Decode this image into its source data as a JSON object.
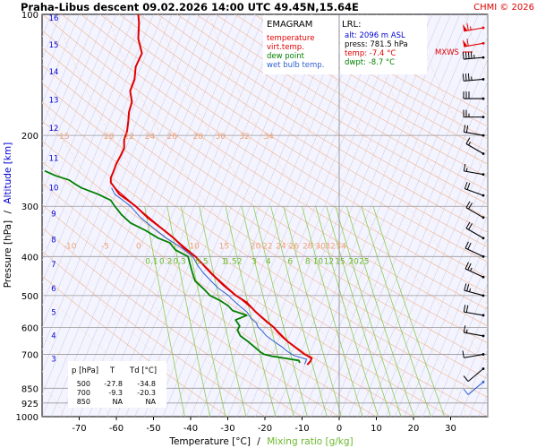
{
  "header": {
    "title": "Praha-Libus   descent   09.02.2026 14:00 UTC  49.45N,15.64E",
    "copyright": "CHMI © 2026"
  },
  "legend": {
    "title": "EMAGRAM",
    "items": [
      {
        "label": "temperature",
        "color": "#e00000"
      },
      {
        "label": "virt.temp.",
        "color": "#e00000"
      },
      {
        "label": "dew point",
        "color": "#008000"
      },
      {
        "label": "wet bulb temp.",
        "color": "#3060d0"
      }
    ]
  },
  "lrl": {
    "heading": "LRL:",
    "lines": [
      {
        "text": "alt: 2096 m ASL",
        "color": "#0000d0"
      },
      {
        "text": "press: 781.5 hPa",
        "color": "#000000"
      },
      {
        "text": "temp: -7.4 °C",
        "color": "#e00000"
      },
      {
        "text": "dwpt: -8.7 °C",
        "color": "#008000"
      }
    ]
  },
  "mxws_label": "MXWS",
  "table": {
    "headers": [
      "p [hPa]",
      "T",
      "Td [°C]"
    ],
    "rows": [
      [
        "500",
        "-27.8",
        "-34.8"
      ],
      [
        "700",
        "-9.3",
        "-20.3"
      ],
      [
        "850",
        "NA",
        "NA"
      ]
    ]
  },
  "axes": {
    "ylabel_pressure": "Pressure [hPa]",
    "ylabel_sep": "/",
    "ylabel_altitude": "Altitude [km]",
    "xlabel_temp": "Temperature [°C]",
    "xlabel_sep": "/",
    "xlabel_mix": "Mixing ratio [g/kg]"
  },
  "chart_data": {
    "type": "line",
    "xlim": [
      -80,
      40
    ],
    "ylim": [
      1000,
      100
    ],
    "yscale": "log",
    "pressure_ticks": [
      100,
      200,
      300,
      400,
      500,
      600,
      700,
      850,
      925,
      1000
    ],
    "temperature_ticks": [
      -70,
      -60,
      -50,
      -40,
      -30,
      -20,
      -10,
      0,
      10,
      20,
      30
    ],
    "altitude_ticks_km": [
      {
        "label": "3",
        "p": 718
      },
      {
        "label": "4",
        "p": 628
      },
      {
        "label": "5",
        "p": 550
      },
      {
        "label": "6",
        "p": 480
      },
      {
        "label": "7",
        "p": 418
      },
      {
        "label": "8",
        "p": 363
      },
      {
        "label": "9",
        "p": 313
      },
      {
        "label": "10",
        "p": 270
      },
      {
        "label": "11",
        "p": 228
      },
      {
        "label": "12",
        "p": 192
      },
      {
        "label": "13",
        "p": 163
      },
      {
        "label": "14",
        "p": 139
      },
      {
        "label": "15",
        "p": 119
      },
      {
        "label": "16",
        "p": 102
      }
    ],
    "mixing_ratio_labels": {
      "p": 411,
      "values": [
        {
          "label": "0.1",
          "T": -50.5
        },
        {
          "label": "0.2",
          "T": -46.7
        },
        {
          "label": "0.3",
          "T": -43
        },
        {
          "label": "0.5",
          "T": -37
        },
        {
          "label": "1",
          "T": -31
        },
        {
          "label": "1.5",
          "T": -29.3
        },
        {
          "label": "2",
          "T": -26.8
        },
        {
          "label": "3",
          "T": -22.9
        },
        {
          "label": "4",
          "T": -19.1
        },
        {
          "label": "6",
          "T": -13.2
        },
        {
          "label": "8",
          "T": -8.5
        },
        {
          "label": "10",
          "T": -5.7
        },
        {
          "label": "12",
          "T": -2.8
        },
        {
          "label": "15",
          "T": 0.2
        },
        {
          "label": "20",
          "T": 3.9
        },
        {
          "label": "25",
          "T": 6.7
        }
      ]
    },
    "adiabat_labels": [
      {
        "p": 201,
        "values": [
          {
            "label": "15",
            "T": -74
          },
          {
            "label": "20",
            "T": -62
          },
          {
            "label": "22",
            "T": -56.5
          },
          {
            "label": "24",
            "T": -51
          },
          {
            "label": "26",
            "T": -45
          },
          {
            "label": "28",
            "T": -38
          },
          {
            "label": "30",
            "T": -32
          },
          {
            "label": "32",
            "T": -25.5
          },
          {
            "label": "34",
            "T": -19
          }
        ]
      },
      {
        "p": 376,
        "values": [
          {
            "label": "-10",
            "T": -72.5
          },
          {
            "label": "-5",
            "T": -63
          },
          {
            "label": "0",
            "T": -54
          },
          {
            "label": "10",
            "T": -39
          },
          {
            "label": "15",
            "T": -31
          },
          {
            "label": "20",
            "T": -22.5
          },
          {
            "label": "22",
            "T": -19.3
          },
          {
            "label": "24",
            "T": -15.7
          },
          {
            "label": "26",
            "T": -12.2
          },
          {
            "label": "28",
            "T": -8.5
          },
          {
            "label": "30",
            "T": -5
          },
          {
            "label": "32",
            "T": -2.4
          },
          {
            "label": "34",
            "T": 0.5
          }
        ]
      }
    ],
    "series": [
      {
        "name": "temperature",
        "color": "#e00000",
        "points": [
          [
            743,
            -8.6
          ],
          [
            730,
            -7.8
          ],
          [
            715,
            -7.4
          ],
          [
            700,
            -9.3
          ],
          [
            680,
            -11.1
          ],
          [
            650,
            -13.9
          ],
          [
            620,
            -16.3
          ],
          [
            600,
            -17.6
          ],
          [
            580,
            -19.6
          ],
          [
            550,
            -22.4
          ],
          [
            520,
            -24.9
          ],
          [
            500,
            -27.8
          ],
          [
            470,
            -31.3
          ],
          [
            440,
            -34.5
          ],
          [
            400,
            -38.7
          ],
          [
            380,
            -41.9
          ],
          [
            360,
            -44.5
          ],
          [
            340,
            -47.9
          ],
          [
            320,
            -51.6
          ],
          [
            300,
            -54.8
          ],
          [
            290,
            -56.9
          ],
          [
            280,
            -59.2
          ],
          [
            270,
            -60.4
          ],
          [
            262,
            -61.5
          ],
          [
            255,
            -61.5
          ],
          [
            245,
            -60.7
          ],
          [
            235,
            -60
          ],
          [
            225,
            -58.9
          ],
          [
            215,
            -57.9
          ],
          [
            205,
            -57.9
          ],
          [
            195,
            -57.1
          ],
          [
            185,
            -56.8
          ],
          [
            175,
            -56.6
          ],
          [
            165,
            -55.8
          ],
          [
            155,
            -56.3
          ],
          [
            145,
            -55.1
          ],
          [
            135,
            -54.8
          ],
          [
            125,
            -53.1
          ],
          [
            115,
            -54.1
          ],
          [
            105,
            -53.9
          ],
          [
            100,
            -54.1
          ]
        ]
      },
      {
        "name": "dew point",
        "color": "#008000",
        "points": [
          [
            735,
            -10.6
          ],
          [
            725,
            -10.9
          ],
          [
            715,
            -14.9
          ],
          [
            708,
            -17.9
          ],
          [
            700,
            -20.3
          ],
          [
            690,
            -21.3
          ],
          [
            670,
            -22.9
          ],
          [
            650,
            -24.6
          ],
          [
            630,
            -26.6
          ],
          [
            610,
            -27.4
          ],
          [
            595,
            -26.8
          ],
          [
            575,
            -27.9
          ],
          [
            560,
            -24.9
          ],
          [
            545,
            -28.7
          ],
          [
            530,
            -29.9
          ],
          [
            515,
            -32
          ],
          [
            500,
            -34.8
          ],
          [
            480,
            -36.6
          ],
          [
            460,
            -38.8
          ],
          [
            440,
            -39.5
          ],
          [
            420,
            -40.1
          ],
          [
            400,
            -40.7
          ],
          [
            385,
            -44.1
          ],
          [
            370,
            -45.6
          ],
          [
            360,
            -48.7
          ],
          [
            345,
            -52
          ],
          [
            330,
            -56.2
          ],
          [
            315,
            -58.6
          ],
          [
            300,
            -60.4
          ],
          [
            290,
            -61.5
          ],
          [
            280,
            -64.9
          ],
          [
            270,
            -69.4
          ],
          [
            265,
            -70.9
          ],
          [
            258,
            -72.8
          ],
          [
            252,
            -76.3
          ],
          [
            245,
            -79.3
          ]
        ]
      },
      {
        "name": "wet bulb temp.",
        "color": "#3060d0",
        "points": [
          [
            740,
            -9.3
          ],
          [
            720,
            -8.8
          ],
          [
            705,
            -12.2
          ],
          [
            690,
            -13.8
          ],
          [
            670,
            -15.5
          ],
          [
            650,
            -17.6
          ],
          [
            630,
            -19.6
          ],
          [
            610,
            -20.9
          ],
          [
            600,
            -21.8
          ],
          [
            585,
            -22.3
          ],
          [
            570,
            -23.7
          ],
          [
            550,
            -24.8
          ],
          [
            530,
            -26.9
          ],
          [
            510,
            -28.9
          ],
          [
            500,
            -29.8
          ],
          [
            480,
            -32.5
          ],
          [
            460,
            -34.5
          ],
          [
            440,
            -36.5
          ],
          [
            420,
            -38.2
          ],
          [
            400,
            -39.4
          ],
          [
            380,
            -42.5
          ],
          [
            360,
            -46.5
          ],
          [
            340,
            -50
          ],
          [
            320,
            -53.5
          ],
          [
            300,
            -56.2
          ],
          [
            290,
            -58.2
          ],
          [
            280,
            -60.4
          ],
          [
            270,
            -61.3
          ]
        ]
      },
      {
        "name": "virt.temp.",
        "color": "#e00000",
        "points": [
          [
            740,
            -8.5
          ],
          [
            720,
            -7.4
          ],
          [
            700,
            -9.2
          ],
          [
            650,
            -13.8
          ],
          [
            600,
            -17.5
          ],
          [
            550,
            -22.3
          ],
          [
            500,
            -27.7
          ],
          [
            450,
            -33.2
          ],
          [
            400,
            -38.6
          ],
          [
            350,
            -46.1
          ],
          [
            300,
            -54.8
          ],
          [
            270,
            -60.4
          ]
        ]
      }
    ],
    "wind_profile": [
      {
        "p": 108,
        "dir": 260,
        "speed": 65,
        "color": "#e00000"
      },
      {
        "p": 118,
        "dir": 260,
        "speed": 60,
        "color": "#e00000"
      },
      {
        "p": 128,
        "dir": 265,
        "speed": 45,
        "color": "#000000"
      },
      {
        "p": 145,
        "dir": 265,
        "speed": 35,
        "color": "#000000"
      },
      {
        "p": 162,
        "dir": 270,
        "speed": 30,
        "color": "#000000"
      },
      {
        "p": 180,
        "dir": 270,
        "speed": 25,
        "color": "#000000"
      },
      {
        "p": 200,
        "dir": 280,
        "speed": 20,
        "color": "#000000"
      },
      {
        "p": 222,
        "dir": 300,
        "speed": 15,
        "color": "#000000"
      },
      {
        "p": 250,
        "dir": 280,
        "speed": 15,
        "color": "#000000"
      },
      {
        "p": 282,
        "dir": 290,
        "speed": 20,
        "color": "#000000"
      },
      {
        "p": 320,
        "dir": 300,
        "speed": 20,
        "color": "#000000"
      },
      {
        "p": 360,
        "dir": 300,
        "speed": 20,
        "color": "#000000"
      },
      {
        "p": 400,
        "dir": 295,
        "speed": 20,
        "color": "#000000"
      },
      {
        "p": 450,
        "dir": 295,
        "speed": 25,
        "color": "#000000"
      },
      {
        "p": 500,
        "dir": 285,
        "speed": 25,
        "color": "#000000"
      },
      {
        "p": 560,
        "dir": 280,
        "speed": 20,
        "color": "#000000"
      },
      {
        "p": 630,
        "dir": 280,
        "speed": 15,
        "color": "#000000"
      },
      {
        "p": 700,
        "dir": 260,
        "speed": 10,
        "color": "#000000"
      },
      {
        "p": 760,
        "dir": 230,
        "speed": 10,
        "color": "#000000"
      },
      {
        "p": 820,
        "dir": 230,
        "speed": 10,
        "color": "#3060d0"
      }
    ]
  }
}
